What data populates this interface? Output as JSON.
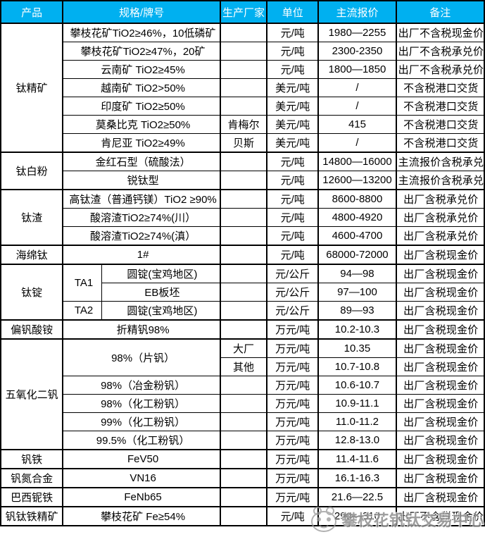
{
  "table": {
    "columns": [
      "产品",
      "规格/牌号",
      "生产厂家",
      "单位",
      "主流报价",
      "备注"
    ],
    "groups": [
      {
        "product": "钛精矿",
        "rows": [
          {
            "spec": "攀枝花矿TiO2≥46%，10低磷矿",
            "small": true,
            "maker": "",
            "unit": "元/吨",
            "price": "1980—2255",
            "note": "出厂不含税现金价"
          },
          {
            "spec": "攀枝花矿TiO2≥47%，20矿",
            "maker": "",
            "unit": "元/吨",
            "price": "2300-2350",
            "note": "出厂不含税承兑价"
          },
          {
            "spec": "云南矿 TiO2≥45%",
            "maker": "",
            "unit": "元/吨",
            "price": "1800—1850",
            "note": "出厂不含税承兑价"
          },
          {
            "spec": "越南矿 TiO2>50%",
            "maker": "",
            "unit": "美元/吨",
            "price": "/",
            "note": "不含税港口交货"
          },
          {
            "spec": "印度矿 TiO2≥50%",
            "maker": "",
            "unit": "美元/吨",
            "price": "/",
            "note": "不含税港口交货"
          },
          {
            "spec": "莫桑比克 TiO2≥50%",
            "maker": "肯梅尔",
            "unit": "美元/吨",
            "price": "415",
            "note": "不含税港口交货"
          },
          {
            "spec": "肯尼亚 TiO2≥49%",
            "maker": "贝斯",
            "unit": "美元/吨",
            "price": "/",
            "note": "不含税港口交货"
          }
        ]
      },
      {
        "product": "钛白粉",
        "rows": [
          {
            "spec": "金红石型（硫酸法）",
            "maker": "",
            "unit": "元/吨",
            "price": "14800—16000",
            "note": "主流报价含税承兑"
          },
          {
            "spec": "锐钛型",
            "maker": "",
            "unit": "元/吨",
            "price": "12600—13200",
            "note": "主流报价含税承兑"
          }
        ]
      },
      {
        "product": "钛渣",
        "rows": [
          {
            "spec": "高钛渣（普通钙镁）TiO2 ≥90%",
            "small": true,
            "maker": "",
            "unit": "元/吨",
            "price": "8600-8800",
            "note": "出厂含税承兑价"
          },
          {
            "spec": "酸溶渣TiO2≥74%(川）",
            "small": true,
            "maker": "",
            "unit": "元/吨",
            "price": "4800-4920",
            "note": "出厂含税承兑价"
          },
          {
            "spec": "酸溶渣TiO2≥74%(滇）",
            "small": true,
            "maker": "",
            "unit": "元/吨",
            "price": "4600-4700",
            "note": "出厂含税承兑价"
          }
        ]
      },
      {
        "product": "海绵钛",
        "rows": [
          {
            "spec": "1#",
            "maker": "",
            "unit": "元/吨",
            "price": "68000-72000",
            "note": "出厂含税现金价"
          }
        ]
      },
      {
        "product": "钛锭",
        "rows": [
          {
            "grade": "TA1",
            "grade_rowspan": 2,
            "spec2": "圆锭(宝鸡地区)",
            "maker": "",
            "unit": "元/公斤",
            "price": "94—98",
            "note": "出厂含税现金价"
          },
          {
            "spec2": "EB板坯",
            "maker": "",
            "unit": "元/公斤",
            "price": "97—100",
            "note": "出厂含税现金价"
          },
          {
            "grade": "TA2",
            "spec2": "圆锭(宝鸡地区)",
            "maker": "",
            "unit": "元/公斤",
            "price": "89—93",
            "note": "出厂含税现金价"
          }
        ]
      },
      {
        "product": "偏钒酸铵",
        "rows": [
          {
            "spec": "折精钒98%",
            "maker": "",
            "unit": "万元/吨",
            "price": "10.2-10.3",
            "note": "出厂含税现金价"
          }
        ]
      },
      {
        "product": "五氧化二钒",
        "rows": [
          {
            "spec": "98%（片钒）",
            "spec_rowspan": 2,
            "maker": "大厂",
            "unit": "万元/吨",
            "price": "10.35",
            "note": "出厂含税现金价"
          },
          {
            "maker": "其他",
            "unit": "万元/吨",
            "price": "10.7-10.8",
            "note": "出厂含税现金价"
          },
          {
            "spec": "98%（冶金粉钒）",
            "maker": "",
            "unit": "万元/吨",
            "price": "10.6-10.7",
            "note": "出厂含税现金价"
          },
          {
            "spec": "98%（化工粉钒）",
            "maker": "",
            "unit": "万元/吨",
            "price": "10.9-11.1",
            "note": "出厂含税现金价"
          },
          {
            "spec": "99%（化工粉钒）",
            "maker": "",
            "unit": "万元/吨",
            "price": "11.0-11.2",
            "note": "出厂含税现金价"
          },
          {
            "spec": "99.5%（化工粉钒）",
            "maker": "",
            "unit": "万元/吨",
            "price": "12.8-13.0",
            "note": "出厂含税现金价"
          }
        ]
      },
      {
        "product": "钒铁",
        "rows": [
          {
            "spec": "FeV50",
            "maker": "",
            "unit": "万元/吨",
            "price": "11.4-11.6",
            "note": "出厂含税现金价"
          }
        ]
      },
      {
        "product": "钒氮合金",
        "rows": [
          {
            "spec": "VN16",
            "maker": "",
            "unit": "万元/吨",
            "price": "16.1-16.3",
            "note": "出厂含税现金价"
          }
        ]
      },
      {
        "product": "巴西铌铁",
        "rows": [
          {
            "spec": "FeNb65",
            "maker": "",
            "unit": "万元/吨",
            "price": "21.6—22.5",
            "note": "出厂含税现金价"
          }
        ]
      },
      {
        "product": "钒钛铁精矿",
        "rows": [
          {
            "spec": "攀枝花矿 Fe≥54%",
            "maker": "",
            "unit": "元/吨",
            "price": "290—310",
            "note": "出厂不含税现金价"
          }
        ]
      }
    ]
  },
  "watermark": {
    "text": "攀枝花钒钛交易中心"
  },
  "colors": {
    "header_bg": "#00B0F0",
    "header_text": "#FFFFFF",
    "border": "#000000",
    "watermark_gray": "#8F8F8F"
  }
}
